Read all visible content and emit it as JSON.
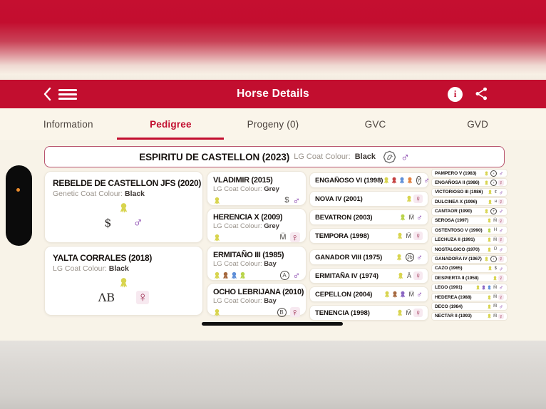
{
  "header": {
    "title": "Horse Details"
  },
  "tabs": [
    {
      "label": "Information",
      "active": false
    },
    {
      "label": "Pedigree",
      "active": true
    },
    {
      "label": "Progeny (0)",
      "active": false
    },
    {
      "label": "GVC",
      "active": false
    },
    {
      "label": "GVD",
      "active": false
    }
  ],
  "glyphs": {
    "male": "♂",
    "female": "♀"
  },
  "colors": {
    "header_red": "#c20e2f",
    "male_purple": "#7b2fa4",
    "female_maroon": "#9b2a4d",
    "rosettes": {
      "yellow": "#d8d44e",
      "green": "#b9d44a",
      "red": "#c4403f",
      "blue": "#5f8fd8",
      "orange": "#e2813f",
      "brown": "#a5683e",
      "purple": "#8a65c2",
      "violet": "#9d7fd4"
    }
  },
  "pedigree": {
    "subject": {
      "name": "ESPIRITU DE CASTELLON (2023)",
      "coat_label": "LG Coat Colour:",
      "coat_value": "Black",
      "gender": "male"
    },
    "gen1": [
      {
        "name": "REBELDE DE CASTELLON JFS (2020)",
        "coat_label": "Genetic Coat Colour:",
        "coat_value": "Black",
        "rosettes": [
          "yellow"
        ],
        "brand": {
          "text": "$",
          "circled": false
        },
        "gender": "male"
      },
      {
        "name": "YALTA CORRALES (2018)",
        "coat_label": "LG Coat Colour:",
        "coat_value": "Black",
        "rosettes": [
          "yellow"
        ],
        "brand": {
          "text": "ΛB",
          "circled": false
        },
        "gender": "female"
      }
    ],
    "gen2": [
      {
        "name": "VLADIMIR (2015)",
        "coat_label": "LG Coat Colour:",
        "coat_value": "Grey",
        "rosettes": [
          "yellow"
        ],
        "brand": {
          "text": "$",
          "circled": false
        },
        "gender": "male"
      },
      {
        "name": "HERENCIA X (2009)",
        "coat_label": "LG Coat Colour:",
        "coat_value": "Grey",
        "rosettes": [
          "yellow"
        ],
        "brand": {
          "text": "M̈",
          "circled": false
        },
        "gender": "female"
      },
      {
        "name": "ERMITAÑO III (1985)",
        "coat_label": "LG Coat Colour:",
        "coat_value": "Bay",
        "rosettes": [
          "yellow",
          "brown",
          "blue",
          "green"
        ],
        "brand": {
          "text": "A",
          "circled": true
        },
        "gender": "male"
      },
      {
        "name": "OCHO LEBRIJANA (2010)",
        "coat_label": "LG Coat Colour:",
        "coat_value": "Bay",
        "rosettes": [
          "yellow"
        ],
        "brand": {
          "text": "B",
          "circled": true
        },
        "gender": "female"
      }
    ],
    "gen3": [
      {
        "name": "ENGAÑOSO VI (1998)",
        "rosettes": [
          "yellow",
          "red",
          "blue",
          "orange"
        ],
        "brand": {
          "text": "Y",
          "circled": true
        },
        "gender": "male"
      },
      {
        "name": "NOVA IV (2001)",
        "rosettes": [
          "yellow"
        ],
        "brand": {
          "text": "",
          "circled": false
        },
        "gender": "female"
      },
      {
        "name": "BEVATRON (2003)",
        "rosettes": [
          "green"
        ],
        "brand": {
          "text": "M̈",
          "circled": false
        },
        "gender": "male"
      },
      {
        "name": "TEMPORA (1998)",
        "rosettes": [
          "yellow"
        ],
        "brand": {
          "text": "M̈",
          "circled": false
        },
        "gender": "female"
      },
      {
        "name": "GANADOR VIII (1975)",
        "rosettes": [
          "yellow"
        ],
        "brand": {
          "text": "Jb",
          "circled": true
        },
        "gender": "male"
      },
      {
        "name": "ERMITAÑA IV (1974)",
        "rosettes": [
          "yellow"
        ],
        "brand": {
          "text": "Ā",
          "circled": false
        },
        "gender": "female"
      },
      {
        "name": "CEPELLON (2004)",
        "rosettes": [
          "yellow",
          "brown",
          "purple"
        ],
        "brand": {
          "text": "M̈",
          "circled": false
        },
        "gender": "male"
      },
      {
        "name": "TENENCIA (1998)",
        "rosettes": [
          "yellow"
        ],
        "brand": {
          "text": "M̈",
          "circled": false
        },
        "gender": "female"
      }
    ],
    "gen4": [
      {
        "name": "PAMPERO V (1983)",
        "rosettes": [
          "yellow"
        ],
        "brand": {
          "text": "+",
          "circled": true
        },
        "gender": "male"
      },
      {
        "name": "ENGAÑOSA II (1986)",
        "rosettes": [
          "yellow"
        ],
        "brand": {
          "text": "+",
          "circled": true
        },
        "gender": "female"
      },
      {
        "name": "VICTORIOSO III (1986)",
        "rosettes": [
          "yellow"
        ],
        "brand": {
          "text": "¢",
          "circled": false
        },
        "gender": "male"
      },
      {
        "name": "DULCINEA X (1996)",
        "rosettes": [
          "yellow"
        ],
        "brand": {
          "text": "ʜ",
          "circled": false
        },
        "gender": "female"
      },
      {
        "name": "CANTAOR (1990)",
        "rosettes": [
          "yellow"
        ],
        "brand": {
          "text": "T",
          "circled": true
        },
        "gender": "male"
      },
      {
        "name": "SEROSA (1997)",
        "rosettes": [
          "yellow"
        ],
        "brand": {
          "text": "M̈",
          "circled": false
        },
        "gender": "female"
      },
      {
        "name": "OSTENTOSO V (1990)",
        "rosettes": [
          "green"
        ],
        "brand": {
          "text": "H",
          "circled": false
        },
        "gender": "male"
      },
      {
        "name": "LECHUZA II (1991)",
        "rosettes": [
          "yellow"
        ],
        "brand": {
          "text": "M̈",
          "circled": false
        },
        "gender": "female"
      },
      {
        "name": "NOSTALGICO (1970)",
        "rosettes": [
          "yellow"
        ],
        "brand": {
          "text": "Ū",
          "circled": false
        },
        "gender": "male"
      },
      {
        "name": "GANADORA IV (1967)",
        "rosettes": [
          "yellow"
        ],
        "brand": {
          "text": "+",
          "circled": true
        },
        "gender": "female"
      },
      {
        "name": "CAZO (1965)",
        "rosettes": [
          "yellow"
        ],
        "brand": {
          "text": "$",
          "circled": false
        },
        "gender": "male"
      },
      {
        "name": "DESPIERTA II (1958)",
        "rosettes": [
          "yellow"
        ],
        "brand": {
          "text": "",
          "circled": false
        },
        "gender": "female"
      },
      {
        "name": "LEGO (1991)",
        "rosettes": [
          "yellow",
          "purple",
          "blue"
        ],
        "brand": {
          "text": "M̈",
          "circled": false
        },
        "gender": "male"
      },
      {
        "name": "HEDEREA (1988)",
        "rosettes": [
          "yellow"
        ],
        "brand": {
          "text": "M̈",
          "circled": false
        },
        "gender": "female"
      },
      {
        "name": "DECO (1984)",
        "rosettes": [
          "yellow"
        ],
        "brand": {
          "text": "M̈",
          "circled": false
        },
        "gender": "male"
      },
      {
        "name": "NECTAR II (1993)",
        "rosettes": [
          "yellow"
        ],
        "brand": {
          "text": "M̈",
          "circled": false
        },
        "gender": "female"
      }
    ]
  }
}
